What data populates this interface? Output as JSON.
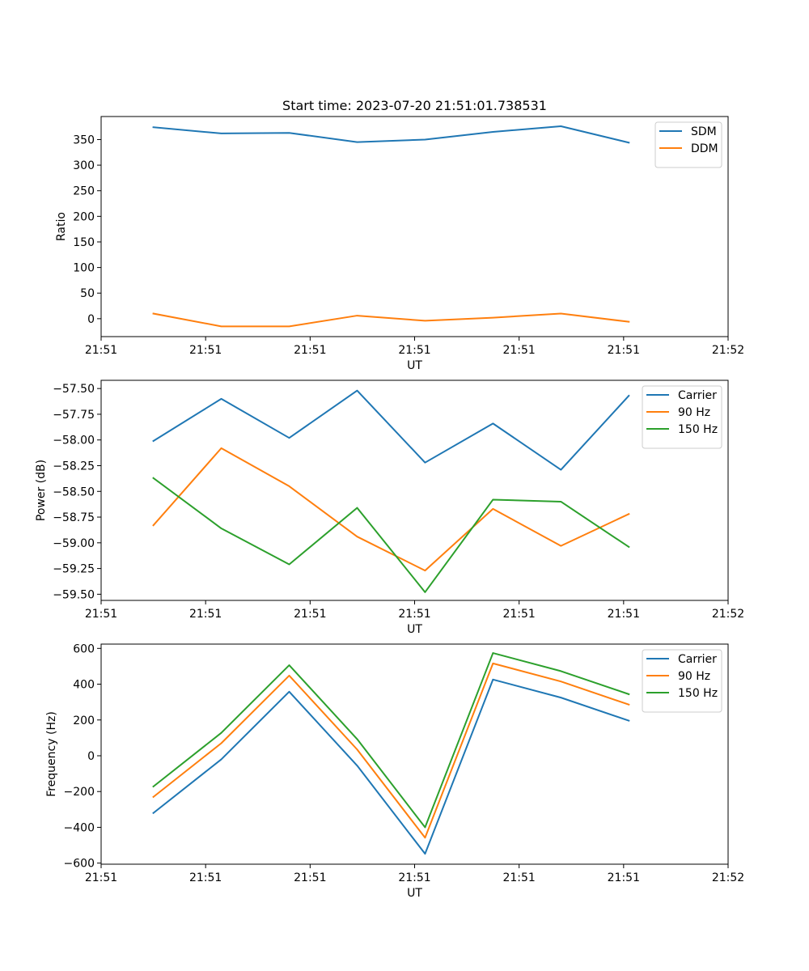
{
  "title": "Start time: 2023-07-20 21:51:01.738531",
  "chart_data": [
    {
      "type": "line",
      "title": "Start time: 2023-07-20 21:51:01.738531",
      "xlabel": "UT",
      "ylabel": "Ratio",
      "x_tick_labels": [
        "21:51",
        "21:51",
        "21:51",
        "21:51",
        "21:51",
        "21:51",
        "21:52"
      ],
      "x_points": [
        0.5,
        1.15,
        1.8,
        2.45,
        3.1,
        3.75,
        4.4,
        5.05
      ],
      "xlim": [
        0,
        6
      ],
      "ylim": [
        -35,
        395
      ],
      "y_ticks": [
        0,
        50,
        100,
        150,
        200,
        250,
        300,
        350
      ],
      "legend_position": "top-right",
      "series": [
        {
          "name": "SDM",
          "color": "#1f77b4",
          "values": [
            374,
            362,
            363,
            345,
            350,
            365,
            376,
            344
          ]
        },
        {
          "name": "DDM",
          "color": "#ff7f0e",
          "values": [
            10,
            -15,
            -15,
            6,
            -4,
            2,
            10,
            -6
          ]
        }
      ]
    },
    {
      "type": "line",
      "title": "",
      "xlabel": "UT",
      "ylabel": "Power (dB)",
      "x_tick_labels": [
        "21:51",
        "21:51",
        "21:51",
        "21:51",
        "21:51",
        "21:51",
        "21:52"
      ],
      "x_points": [
        0.5,
        1.15,
        1.8,
        2.45,
        3.1,
        3.75,
        4.4,
        5.05
      ],
      "xlim": [
        0,
        6
      ],
      "ylim": [
        -59.56,
        -57.42
      ],
      "y_ticks": [
        -59.5,
        -59.25,
        -59.0,
        -58.75,
        -58.5,
        -58.25,
        -58.0,
        -57.75,
        -57.5
      ],
      "y_tick_labels": [
        "−59.50",
        "−59.25",
        "−59.00",
        "−58.75",
        "−58.50",
        "−58.25",
        "−58.00",
        "−57.75",
        "−57.50"
      ],
      "legend_position": "top-right",
      "series": [
        {
          "name": "Carrier",
          "color": "#1f77b4",
          "values": [
            -58.01,
            -57.6,
            -57.98,
            -57.52,
            -58.22,
            -57.84,
            -58.29,
            -57.57
          ]
        },
        {
          "name": "90 Hz",
          "color": "#ff7f0e",
          "values": [
            -58.83,
            -58.08,
            -58.45,
            -58.94,
            -59.27,
            -58.67,
            -59.03,
            -58.72
          ]
        },
        {
          "name": "150 Hz",
          "color": "#2ca02c",
          "values": [
            -58.37,
            -58.86,
            -59.21,
            -58.66,
            -59.48,
            -58.58,
            -58.6,
            -59.04
          ]
        }
      ]
    },
    {
      "type": "line",
      "title": "",
      "xlabel": "UT",
      "ylabel": "Frequency (Hz)",
      "x_tick_labels": [
        "21:51",
        "21:51",
        "21:51",
        "21:51",
        "21:51",
        "21:51",
        "21:52"
      ],
      "x_points": [
        0.5,
        1.15,
        1.8,
        2.45,
        3.1,
        3.75,
        4.4,
        5.05
      ],
      "xlim": [
        0,
        6
      ],
      "ylim": [
        -606,
        624
      ],
      "y_ticks": [
        -600,
        -400,
        -200,
        0,
        200,
        400,
        600
      ],
      "y_tick_labels": [
        "−600",
        "−400",
        "−200",
        "0",
        "200",
        "400",
        "600"
      ],
      "legend_position": "top-right",
      "series": [
        {
          "name": "Carrier",
          "color": "#1f77b4",
          "values": [
            -320,
            -20,
            358,
            -55,
            -548,
            426,
            325,
            196
          ]
        },
        {
          "name": "90 Hz",
          "color": "#ff7f0e",
          "values": [
            -230,
            70,
            448,
            35,
            -458,
            516,
            415,
            286
          ]
        },
        {
          "name": "150 Hz",
          "color": "#2ca02c",
          "values": [
            -172,
            128,
            506,
            93,
            -400,
            574,
            473,
            344
          ]
        }
      ]
    }
  ]
}
